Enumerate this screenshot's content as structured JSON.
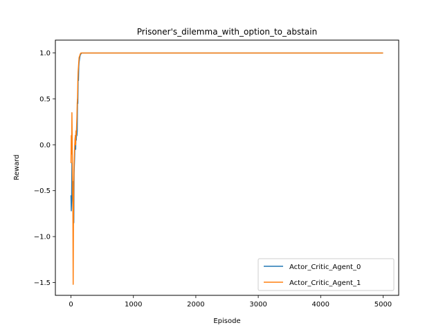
{
  "chart_data": {
    "type": "line",
    "title": "Prisoner's_dilemma_with_option_to_abstain",
    "xlabel": "Episode",
    "ylabel": "Reward",
    "xlim": [
      -250,
      5250
    ],
    "ylim": [
      -1.64,
      1.14
    ],
    "x_ticks": [
      0,
      1000,
      2000,
      3000,
      4000,
      5000
    ],
    "x_tick_labels": [
      "0",
      "1000",
      "2000",
      "3000",
      "4000",
      "5000"
    ],
    "y_ticks": [
      -1.5,
      -1.0,
      -0.5,
      0.0,
      0.5,
      1.0
    ],
    "y_tick_labels": [
      "−1.5",
      "−1.0",
      "−0.5",
      "0.0",
      "0.5",
      "1.0"
    ],
    "grid": false,
    "legend_position": "lower-right",
    "series": [
      {
        "name": "Actor_Critic_Agent_0",
        "color": "#1f77b4",
        "x": [
          0,
          5,
          10,
          15,
          20,
          25,
          30,
          35,
          40,
          45,
          50,
          55,
          60,
          65,
          70,
          75,
          80,
          85,
          90,
          95,
          100,
          105,
          110,
          115,
          120,
          125,
          130,
          140,
          150,
          160,
          170,
          180,
          200,
          250,
          300,
          500,
          1000,
          2000,
          3000,
          4000,
          5000
        ],
        "y": [
          -0.55,
          -0.72,
          -0.6,
          -0.2,
          -0.35,
          -0.5,
          -0.7,
          -0.4,
          -0.6,
          -0.85,
          -0.3,
          -0.2,
          -0.1,
          0.05,
          0.1,
          -0.05,
          0.15,
          0.05,
          0.15,
          0.1,
          0.15,
          0.5,
          0.45,
          0.75,
          0.7,
          0.85,
          0.9,
          0.95,
          0.98,
          0.99,
          1.0,
          1.0,
          1.0,
          1.0,
          1.0,
          1.0,
          1.0,
          1.0,
          1.0,
          1.0,
          1.0
        ]
      },
      {
        "name": "Actor_Critic_Agent_1",
        "color": "#ff7f0e",
        "x": [
          0,
          5,
          10,
          15,
          20,
          25,
          30,
          35,
          40,
          45,
          50,
          55,
          60,
          65,
          70,
          75,
          80,
          85,
          90,
          95,
          100,
          105,
          110,
          115,
          120,
          125,
          130,
          140,
          150,
          160,
          170,
          180,
          200,
          250,
          300,
          500,
          1000,
          2000,
          3000,
          4000,
          5000
        ],
        "y": [
          -0.2,
          0.1,
          -0.1,
          0.35,
          0.0,
          -0.5,
          -0.6,
          -1.52,
          -0.8,
          -0.4,
          -0.2,
          -0.1,
          0.0,
          0.05,
          0.1,
          0.0,
          0.15,
          0.1,
          0.2,
          0.3,
          0.45,
          0.5,
          0.7,
          0.8,
          0.85,
          0.9,
          0.95,
          0.97,
          0.99,
          1.0,
          1.0,
          1.0,
          1.0,
          1.0,
          1.0,
          1.0,
          1.0,
          1.0,
          1.0,
          1.0,
          1.0
        ]
      }
    ]
  }
}
